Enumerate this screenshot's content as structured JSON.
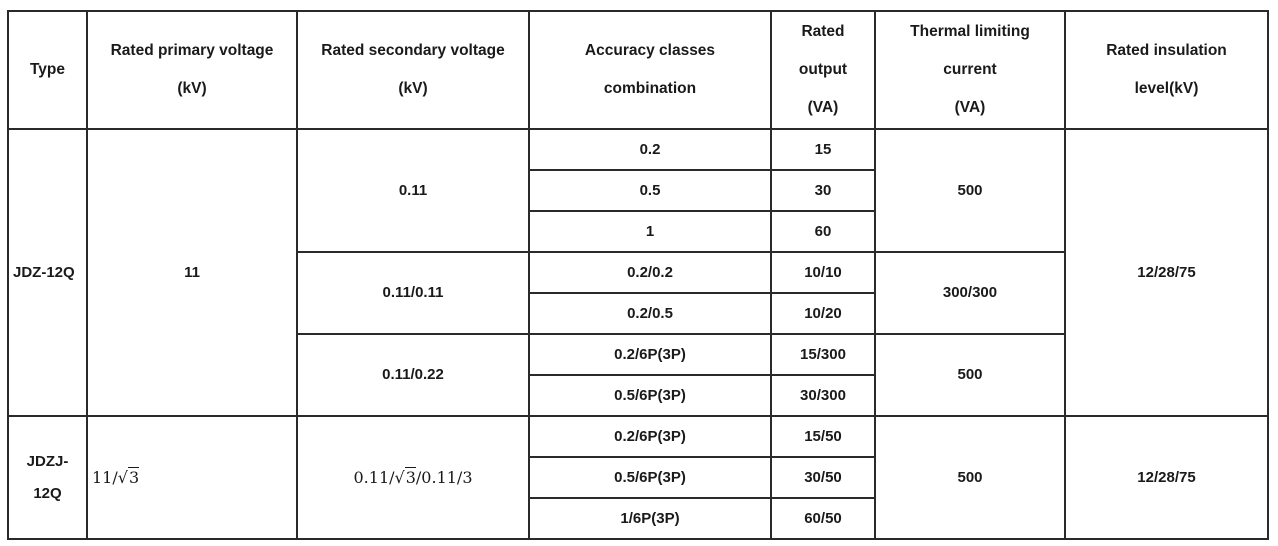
{
  "headers": {
    "type": "Type",
    "primary_voltage": [
      "Rated primary voltage",
      "(kV)"
    ],
    "secondary_voltage": [
      "Rated secondary voltage",
      "(kV)"
    ],
    "accuracy": [
      "Accuracy classes",
      "combination"
    ],
    "output": [
      "Rated",
      "output",
      "(VA)"
    ],
    "thermal": [
      "Thermal limiting",
      "current",
      "(VA)"
    ],
    "insulation": [
      "Rated insulation",
      "level(kV)"
    ]
  },
  "groups": [
    {
      "type": "JDZ-12Q",
      "primary_voltage": "11",
      "insulation": "12/28/75",
      "sub": [
        {
          "secondary_voltage": "0.11",
          "thermal": "500",
          "rows": [
            {
              "accuracy": "0.2",
              "output": "15"
            },
            {
              "accuracy": "0.5",
              "output": "30"
            },
            {
              "accuracy": "1",
              "output": "60"
            }
          ]
        },
        {
          "secondary_voltage": "0.11/0.11",
          "thermal": "300/300",
          "rows": [
            {
              "accuracy": "0.2/0.2",
              "output": "10/10"
            },
            {
              "accuracy": "0.2/0.5",
              "output": "10/20"
            }
          ]
        },
        {
          "secondary_voltage": "0.11/0.22",
          "thermal": "500",
          "rows": [
            {
              "accuracy": "0.2/6P(3P)",
              "output": "15/300"
            },
            {
              "accuracy": "0.5/6P(3P)",
              "output": "30/300"
            }
          ]
        }
      ]
    },
    {
      "type": [
        "JDZJ-",
        "12Q"
      ],
      "primary_voltage": {
        "pre": "11/",
        "radical": "√",
        "radicand": "3"
      },
      "secondary_voltage": {
        "pre": "0.11/",
        "radical": "√",
        "radicand": "3",
        "post": "/0.11/3"
      },
      "thermal": "500",
      "insulation": "12/28/75",
      "rows": [
        {
          "accuracy": "0.2/6P(3P)",
          "output": "15/50"
        },
        {
          "accuracy": "0.5/6P(3P)",
          "output": "30/50"
        },
        {
          "accuracy": "1/6P(3P)",
          "output": "60/50"
        }
      ]
    }
  ]
}
